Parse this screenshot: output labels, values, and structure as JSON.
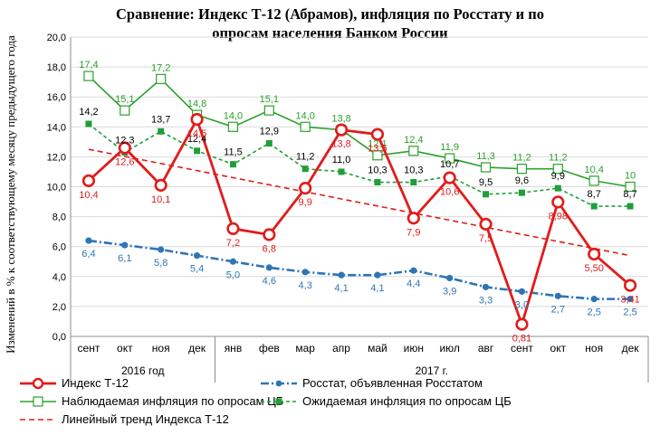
{
  "chart_data": {
    "type": "line",
    "title_lines": [
      "Сравнение: Индекс Т-12 (Абрамов), инфляция по Росстату и по",
      "опросам населения Банком России"
    ],
    "ylabel": "Изменений в % к соответствующему месяцу предыдущего года",
    "ylim": [
      0,
      20
    ],
    "yticks": [
      "0,0",
      "2,0",
      "4,0",
      "6,0",
      "8,0",
      "10,0",
      "12,0",
      "14,0",
      "16,0",
      "18,0",
      "20,0"
    ],
    "categories": [
      "сент",
      "окт",
      "ноя",
      "дек",
      "янв",
      "фев",
      "мар",
      "апр",
      "май",
      "июн",
      "июл",
      "авг",
      "сент",
      "окт",
      "ноя",
      "дек"
    ],
    "year_groups": [
      {
        "label": "2016 год",
        "count": 4
      },
      {
        "label": "2017 г.",
        "count": 12
      }
    ],
    "grid": true,
    "series": [
      {
        "name": "Индекс Т-12",
        "color": "#e21b1b",
        "values": [
          10.4,
          12.6,
          10.1,
          14.5,
          7.2,
          6.8,
          9.9,
          13.8,
          13.5,
          7.9,
          10.6,
          7.5,
          0.81,
          8.98,
          5.5,
          3.41
        ],
        "labels": [
          "10,4",
          "12,6",
          "10,1",
          "14,5",
          "7,2",
          "6,8",
          "9,9",
          "13,8",
          "13,5",
          "7,9",
          "10,6",
          "7,5",
          "0,81",
          "8,98",
          "5,50",
          "3,41"
        ]
      },
      {
        "name": "Росстат, объявленная Росстатом",
        "color": "#2e75b6",
        "values": [
          6.4,
          6.1,
          5.8,
          5.4,
          5.0,
          4.6,
          4.3,
          4.1,
          4.1,
          4.4,
          3.9,
          3.3,
          3.0,
          2.7,
          2.5,
          2.5
        ],
        "labels": [
          "6,4",
          "6,1",
          "5,8",
          "5,4",
          "5,0",
          "4,6",
          "4,3",
          "4,1",
          "4,1",
          "4,4",
          "3,9",
          "3,3",
          "3,0",
          "2,7",
          "2,5",
          "2,5"
        ]
      },
      {
        "name": "Наблюдаемая инфляция по опросам ЦБ",
        "color": "#2ca02c",
        "values": [
          17.4,
          15.1,
          17.2,
          14.8,
          14.0,
          15.1,
          14.0,
          13.8,
          12.1,
          12.4,
          11.9,
          11.3,
          11.2,
          11.2,
          10.4,
          10.0
        ],
        "labels": [
          "17,4",
          "15,1",
          "17,2",
          "14,8",
          "14,0",
          "15,1",
          "14,0",
          "13,8",
          "12,1",
          "12,4",
          "11,9",
          "11,3",
          "11,2",
          "11,2",
          "10,4",
          "10"
        ]
      },
      {
        "name": "Ожидаемая инфляция по опросам ЦБ",
        "color": "#1f9e3a",
        "values": [
          14.2,
          12.3,
          13.7,
          12.4,
          11.5,
          12.9,
          11.2,
          11.0,
          10.3,
          10.3,
          10.7,
          9.5,
          9.6,
          9.9,
          8.7,
          8.7
        ],
        "labels": [
          "14,2",
          "12,3",
          "13,7",
          "12,4",
          "11,5",
          "12,9",
          "11,2",
          "11,0",
          "10,3",
          "10,3",
          "10,7",
          "9,5",
          "9,6",
          "9,9",
          "8,7",
          "8,7"
        ]
      },
      {
        "name": "Линейный тренд Индекса Т-12",
        "color": "#e21b1b",
        "trend": [
          12.5,
          5.4
        ]
      }
    ],
    "legend_placement": "bottom"
  }
}
